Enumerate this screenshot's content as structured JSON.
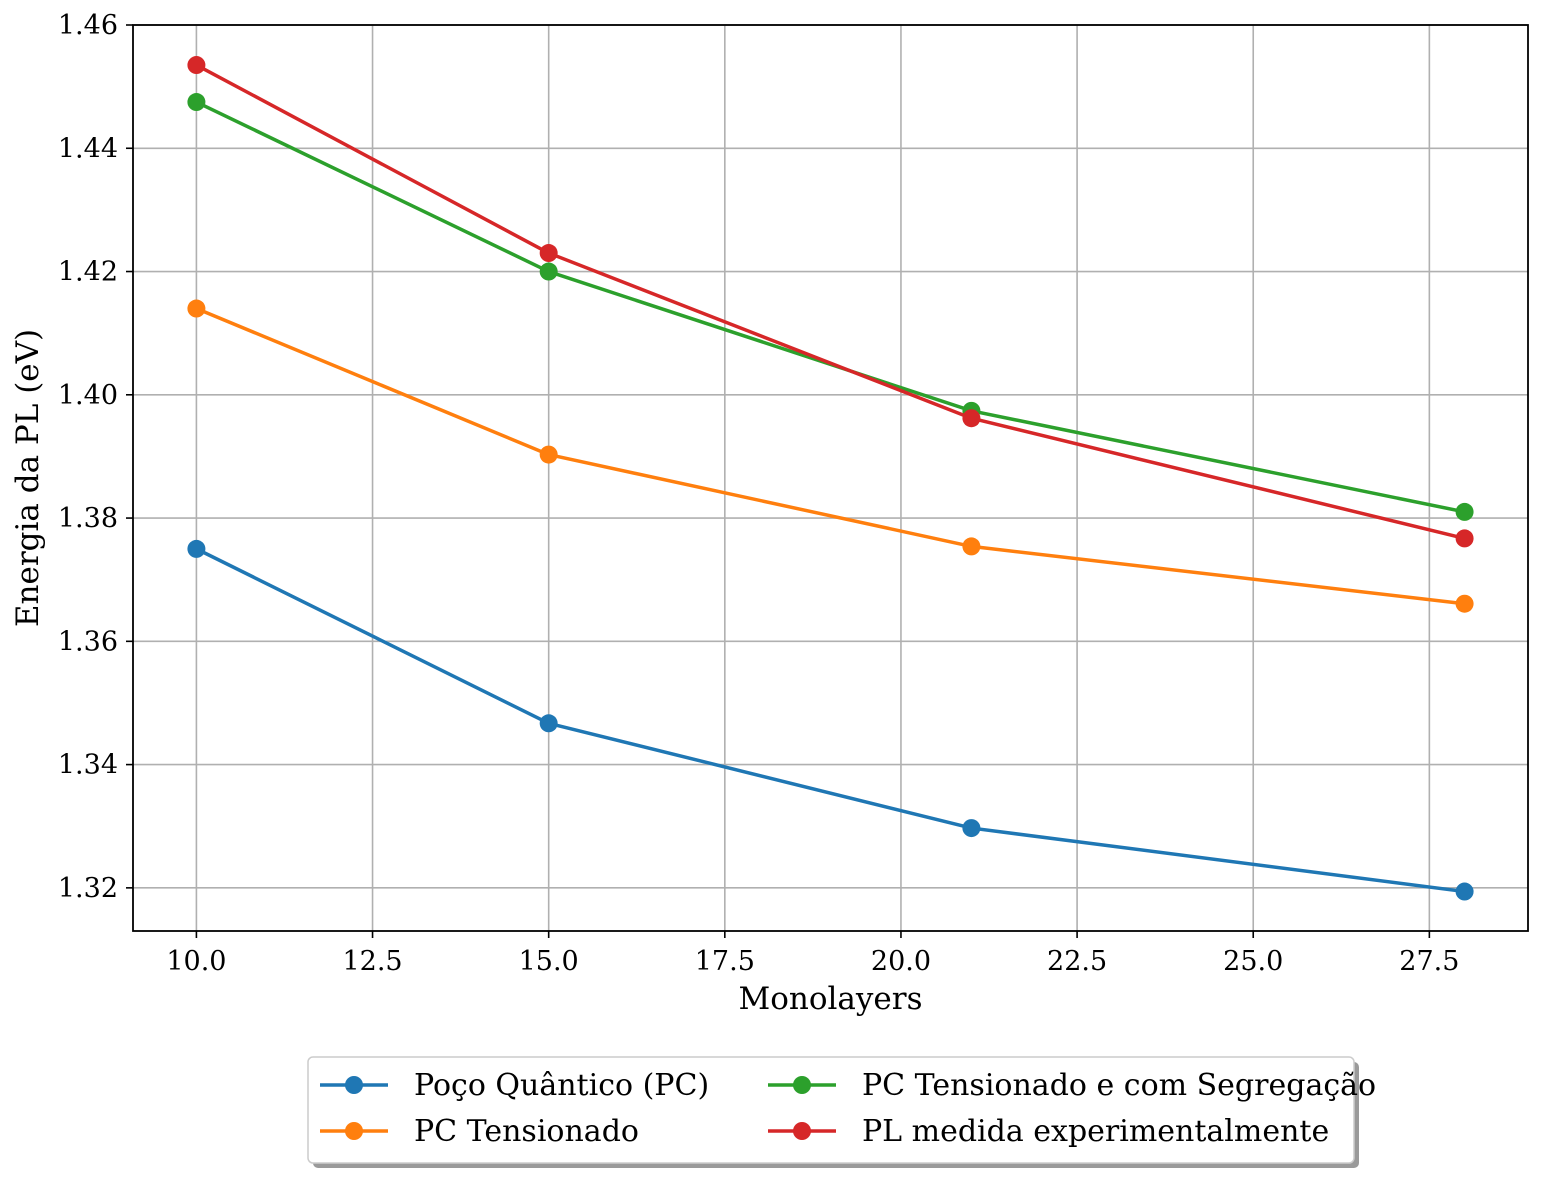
{
  "chart_data": {
    "type": "line",
    "title": "",
    "xlabel": "Monolayers",
    "ylabel": "Energia da PL (eV)",
    "xlim": [
      9.1,
      28.9
    ],
    "ylim": [
      1.313,
      1.46
    ],
    "xticks": [
      "10.0",
      "12.5",
      "15.0",
      "17.5",
      "20.0",
      "22.5",
      "25.0",
      "27.5"
    ],
    "xtick_values": [
      10.0,
      12.5,
      15.0,
      17.5,
      20.0,
      22.5,
      25.0,
      27.5
    ],
    "yticks": [
      "1.32",
      "1.34",
      "1.36",
      "1.38",
      "1.40",
      "1.42",
      "1.44",
      "1.46"
    ],
    "ytick_values": [
      1.32,
      1.34,
      1.36,
      1.38,
      1.4,
      1.42,
      1.44,
      1.46
    ],
    "grid": true,
    "legend_position": "bottom-center, below plot",
    "x": [
      10,
      15,
      21,
      28
    ],
    "series": [
      {
        "name": "Poço Quântico (PC)",
        "color": "#1f77b4",
        "marker": "circle",
        "values": [
          1.375,
          1.3467,
          1.3297,
          1.3194
        ]
      },
      {
        "name": "PC Tensionado",
        "color": "#ff7f0e",
        "marker": "circle",
        "values": [
          1.414,
          1.3903,
          1.3754,
          1.3661
        ]
      },
      {
        "name": "PC Tensionado e com Segregação",
        "color": "#2ca02c",
        "marker": "circle",
        "values": [
          1.4475,
          1.42,
          1.3974,
          1.381
        ]
      },
      {
        "name": "PL medida experimentalmente",
        "color": "#d62728",
        "marker": "circle",
        "values": [
          1.4535,
          1.423,
          1.3962,
          1.3767
        ]
      }
    ]
  }
}
